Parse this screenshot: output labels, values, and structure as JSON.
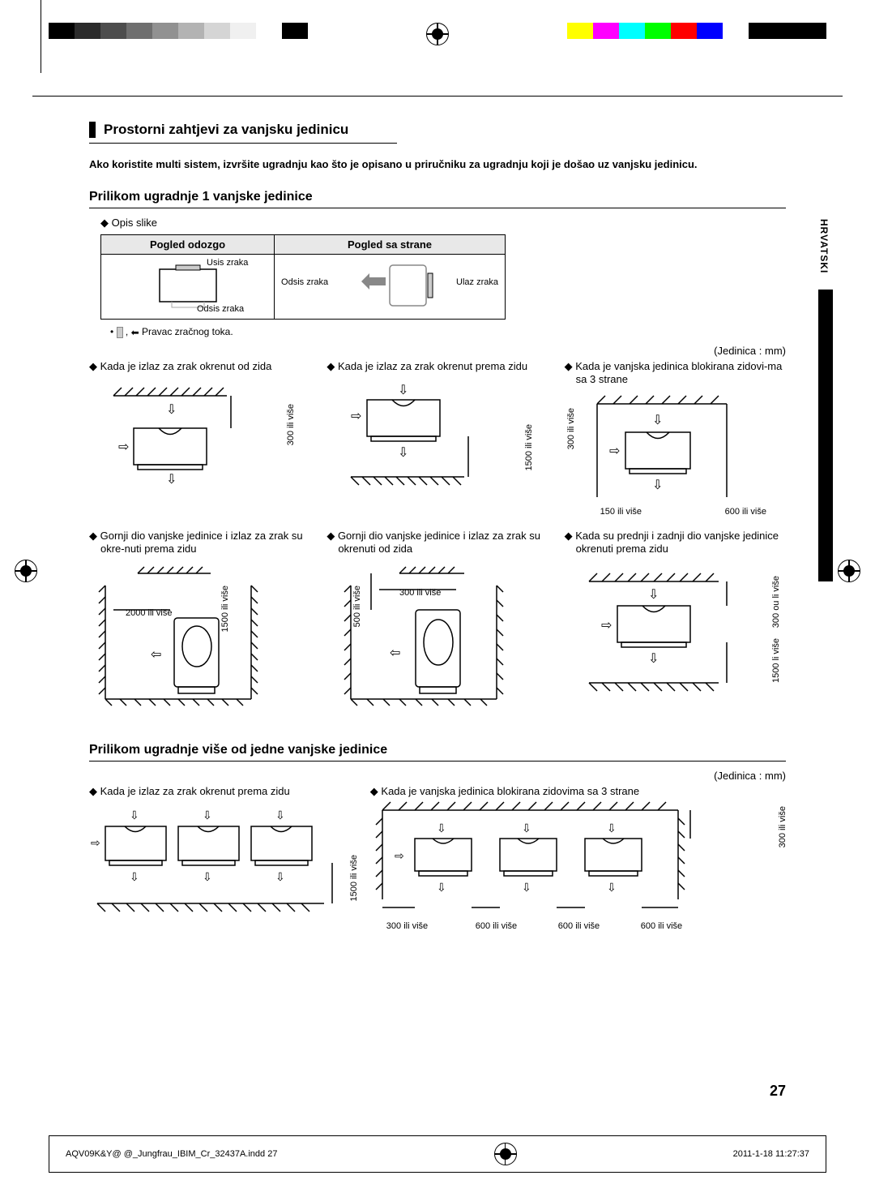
{
  "colorbars": {
    "left": [
      "#000000",
      "#2b2b2b",
      "#4d4d4d",
      "#6f6f6f",
      "#919191",
      "#b3b3b3",
      "#d5d5d5",
      "#f0f0f0",
      "#ffffff",
      "#000000"
    ],
    "right": [
      "#ffff00",
      "#ff00ff",
      "#00ffff",
      "#00ff00",
      "#ff0000",
      "#0000ff",
      "#ffffff",
      "#000000",
      "#000000",
      "#000000"
    ]
  },
  "title": "Prostorni zahtjevi za vanjsku jedinicu",
  "note": "Ako koristite multi sistem, izvršite ugradnju kao što je opisano u priručniku za ugradnju koji je došao uz vanjsku jedinicu.",
  "section1": {
    "heading": "Prilikom ugradnje 1 vanjske jedinice",
    "opis": "Opis slike",
    "th1": "Pogled odozgo",
    "th2": "Pogled sa strane",
    "usis": "Usis zraka",
    "odsis": "Odsis zraka",
    "ulaz": "Ulaz zraka",
    "legend": "Pravac zračnog toka.",
    "unit": "(Jedinica : mm)",
    "cases": [
      {
        "label": "Kada je izlaz za zrak okrenut od zida",
        "dims": [
          "300 ili više"
        ]
      },
      {
        "label": "Kada je izlaz za zrak okrenut prema zidu",
        "dims": [
          "1500 ili više"
        ]
      },
      {
        "label": "Kada je vanjska jedinica blokirana zidovi-ma sa 3 strane",
        "dims": [
          "300 ili više",
          "150  ili više",
          "600  ili više"
        ]
      },
      {
        "label": "Gornji dio vanjske jedinice i izlaz za zrak su okre-nuti prema zidu",
        "dims": [
          "2000 ili više",
          "1500 ili više"
        ]
      },
      {
        "label": "Gornji dio vanjske jedinice i izlaz za zrak su okrenuti od zida",
        "dims": [
          "500 ili više",
          "300 ili više"
        ]
      },
      {
        "label": "Kada su prednji i zadnji dio vanjske jedinice okrenuti prema zidu",
        "dims": [
          "300 ou li više",
          "1500 li više"
        ]
      }
    ]
  },
  "section2": {
    "heading": "Prilikom ugradnje više od jedne vanjske jedinice",
    "unit": "(Jedinica : mm)",
    "cases": [
      {
        "label": "Kada je izlaz za zrak okrenut prema zidu",
        "dims": [
          "1500 ili više"
        ]
      },
      {
        "label": "Kada je vanjska jedinica blokirana zidovima sa 3 strane",
        "dims": [
          "300 ili više",
          "300 ili više",
          "600 ili više",
          "600 ili više",
          "600 ili više"
        ]
      }
    ]
  },
  "sidetab": "HRVATSKI",
  "pagenum": "27",
  "footer": {
    "left": "AQV09K&Y@ @_Jungfrau_IBIM_Cr_32437A.indd   27",
    "right": "2011-1-18   11:27:37"
  }
}
